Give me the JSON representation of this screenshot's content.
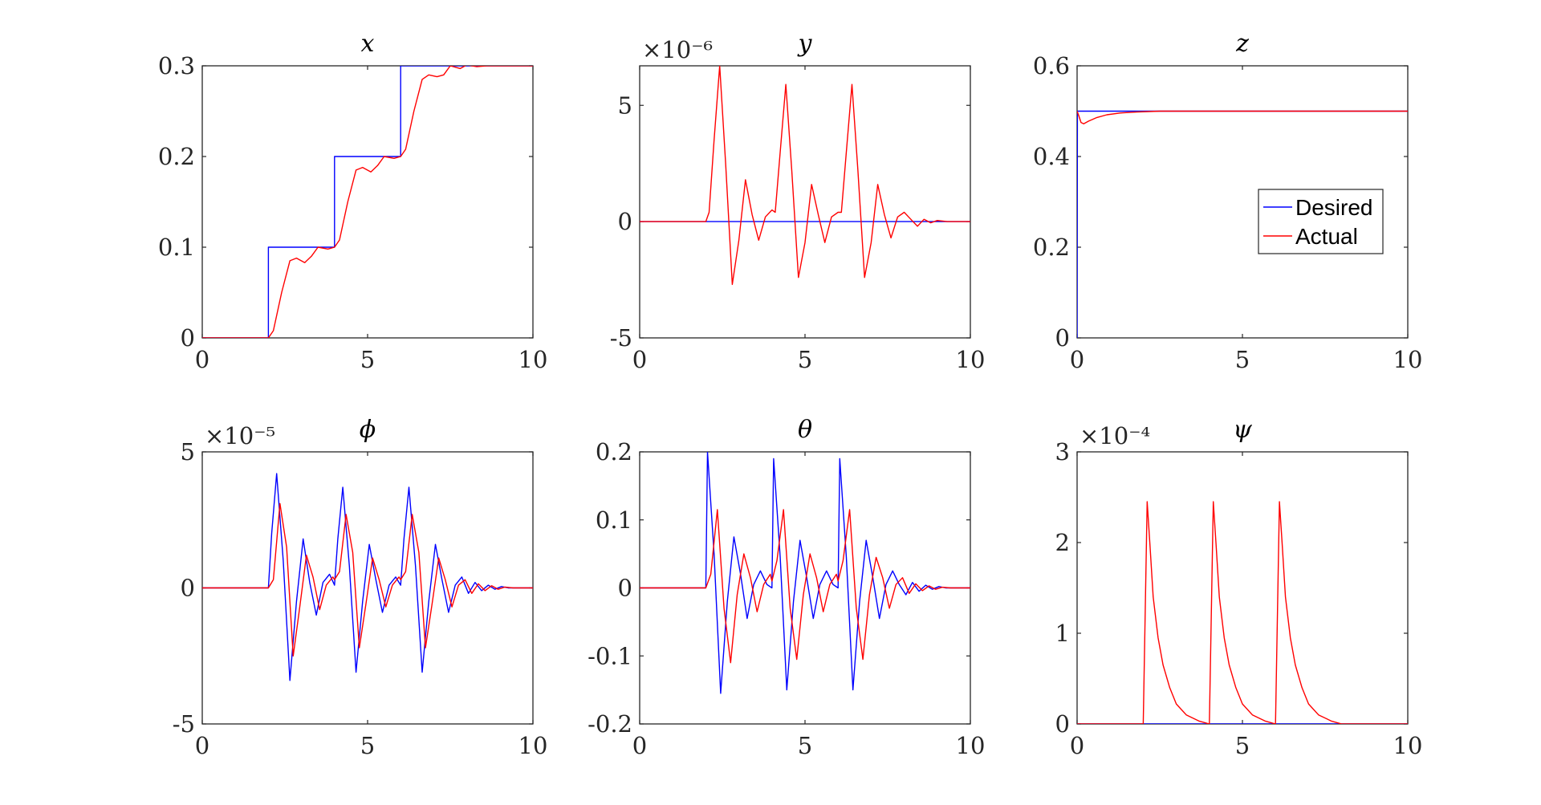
{
  "legend": {
    "placement": "inside subplot z, right",
    "entries": [
      {
        "name": "Desired",
        "color": "#0000ff"
      },
      {
        "name": "Actual",
        "color": "#ff0000"
      }
    ]
  },
  "chart_data": [
    {
      "type": "line",
      "title": "x",
      "exponent": "",
      "xlim": [
        0,
        10
      ],
      "ylim": [
        0,
        0.3
      ],
      "xticks": [
        "0",
        "5",
        "10"
      ],
      "xtick_values": [
        0,
        5,
        10
      ],
      "yticks": [
        "0",
        "0.1",
        "0.2",
        "0.3"
      ],
      "ytick_values": [
        0,
        0.1,
        0.2,
        0.3
      ],
      "series": [
        {
          "name": "Desired",
          "color": "#0000ff",
          "x": [
            0,
            2,
            2,
            4,
            4,
            6,
            6,
            10
          ],
          "y": [
            0,
            0,
            0.1,
            0.1,
            0.2,
            0.2,
            0.3,
            0.3
          ]
        },
        {
          "name": "Actual",
          "color": "#ff0000",
          "x": [
            0,
            2.0,
            2.15,
            2.4,
            2.65,
            2.85,
            3.1,
            3.3,
            3.5,
            3.8,
            4.0,
            4.15,
            4.4,
            4.65,
            4.85,
            5.1,
            5.3,
            5.5,
            5.8,
            6.0,
            6.15,
            6.4,
            6.65,
            6.85,
            7.1,
            7.3,
            7.5,
            7.8,
            8.0,
            8.3,
            8.6,
            9.0,
            9.5,
            10
          ],
          "y": [
            0,
            0,
            0.008,
            0.05,
            0.085,
            0.088,
            0.083,
            0.09,
            0.1,
            0.098,
            0.1,
            0.108,
            0.15,
            0.185,
            0.188,
            0.183,
            0.19,
            0.2,
            0.198,
            0.2,
            0.208,
            0.25,
            0.285,
            0.29,
            0.288,
            0.29,
            0.3,
            0.297,
            0.301,
            0.299,
            0.3,
            0.3,
            0.3,
            0.3
          ]
        }
      ]
    },
    {
      "type": "line",
      "title": "y",
      "exponent": "×10⁻⁶",
      "xlim": [
        0,
        10
      ],
      "ylim": [
        -5,
        6.7
      ],
      "xticks": [
        "0",
        "5",
        "10"
      ],
      "xtick_values": [
        0,
        5,
        10
      ],
      "yticks": [
        "-5",
        "0",
        "5"
      ],
      "ytick_values": [
        -5,
        0,
        5
      ],
      "series": [
        {
          "name": "Desired",
          "color": "#0000ff",
          "x": [
            0,
            10
          ],
          "y": [
            0,
            0
          ]
        },
        {
          "name": "Actual",
          "color": "#ff0000",
          "x": [
            0,
            2.0,
            2.1,
            2.25,
            2.42,
            2.6,
            2.8,
            3.0,
            3.2,
            3.4,
            3.6,
            3.8,
            4.0,
            4.1,
            4.25,
            4.42,
            4.6,
            4.8,
            5.0,
            5.2,
            5.4,
            5.6,
            5.8,
            6.0,
            6.1,
            6.25,
            6.42,
            6.6,
            6.8,
            7.0,
            7.2,
            7.4,
            7.6,
            7.8,
            8.0,
            8.2,
            8.4,
            8.6,
            8.8,
            9.0,
            9.3,
            10
          ],
          "y": [
            0,
            0,
            0.4,
            3.5,
            6.7,
            2.5,
            -2.7,
            -0.8,
            1.8,
            0.3,
            -0.8,
            0.2,
            0.5,
            0.4,
            3.0,
            5.9,
            2.2,
            -2.4,
            -0.9,
            1.6,
            0.3,
            -0.9,
            0.2,
            0.4,
            0.4,
            3.0,
            5.9,
            2.2,
            -2.4,
            -0.9,
            1.6,
            0.3,
            -0.7,
            0.2,
            0.4,
            0.1,
            -0.2,
            0.1,
            -0.05,
            0.05,
            0,
            0
          ]
        }
      ]
    },
    {
      "type": "line",
      "title": "z",
      "exponent": "",
      "xlim": [
        0,
        10
      ],
      "ylim": [
        0,
        0.6
      ],
      "xticks": [
        "0",
        "5",
        "10"
      ],
      "xtick_values": [
        0,
        5,
        10
      ],
      "yticks": [
        "0",
        "0.2",
        "0.4",
        "0.6"
      ],
      "ytick_values": [
        0,
        0.2,
        0.4,
        0.6
      ],
      "series": [
        {
          "name": "Desired",
          "color": "#0000ff",
          "x": [
            0,
            0.01,
            10
          ],
          "y": [
            0,
            0.5,
            0.5
          ]
        },
        {
          "name": "Actual",
          "color": "#ff0000",
          "x": [
            0,
            0.05,
            0.12,
            0.2,
            0.35,
            0.6,
            0.9,
            1.3,
            1.8,
            2.5,
            4,
            10
          ],
          "y": [
            0.5,
            0.49,
            0.475,
            0.472,
            0.478,
            0.486,
            0.492,
            0.496,
            0.498,
            0.5,
            0.5,
            0.5
          ]
        }
      ]
    },
    {
      "type": "line",
      "title": "ϕ",
      "exponent": "×10⁻⁵",
      "xlim": [
        0,
        10
      ],
      "ylim": [
        -5,
        5
      ],
      "xticks": [
        "0",
        "5",
        "10"
      ],
      "xtick_values": [
        0,
        5,
        10
      ],
      "yticks": [
        "-5",
        "0",
        "5"
      ],
      "ytick_values": [
        -5,
        0,
        5
      ],
      "series": [
        {
          "name": "Desired",
          "color": "#0000ff",
          "x": [
            0,
            2.0,
            2.1,
            2.25,
            2.45,
            2.65,
            2.85,
            3.05,
            3.25,
            3.45,
            3.65,
            3.85,
            4.0,
            4.1,
            4.25,
            4.45,
            4.65,
            4.85,
            5.05,
            5.25,
            5.45,
            5.65,
            5.85,
            6.0,
            6.1,
            6.25,
            6.45,
            6.65,
            6.85,
            7.05,
            7.25,
            7.45,
            7.65,
            7.85,
            8.05,
            8.25,
            8.45,
            8.65,
            8.85,
            9.05,
            9.25,
            9.5,
            10
          ],
          "y": [
            0,
            0,
            2.0,
            4.2,
            1.0,
            -3.4,
            -0.5,
            1.8,
            0.2,
            -1.0,
            0.2,
            0.5,
            0.1,
            1.8,
            3.7,
            0.8,
            -3.1,
            -0.5,
            1.6,
            0.3,
            -0.9,
            0.1,
            0.4,
            0.1,
            1.8,
            3.7,
            0.8,
            -3.1,
            -0.5,
            1.6,
            0.3,
            -0.9,
            0.1,
            0.4,
            -0.2,
            0.2,
            -0.1,
            0.1,
            -0.05,
            0.05,
            0,
            0,
            0
          ]
        },
        {
          "name": "Actual",
          "color": "#ff0000",
          "x": [
            0,
            2.0,
            2.15,
            2.35,
            2.55,
            2.75,
            2.95,
            3.15,
            3.35,
            3.55,
            3.75,
            3.95,
            4.0,
            4.15,
            4.35,
            4.55,
            4.75,
            4.95,
            5.15,
            5.35,
            5.55,
            5.75,
            5.95,
            6.0,
            6.15,
            6.35,
            6.55,
            6.75,
            6.95,
            7.15,
            7.35,
            7.55,
            7.75,
            7.95,
            8.15,
            8.35,
            8.55,
            8.75,
            8.95,
            9.15,
            9.4,
            10
          ],
          "y": [
            0,
            0,
            0.3,
            3.1,
            1.5,
            -2.5,
            -0.7,
            1.2,
            0.4,
            -0.8,
            0.1,
            0.4,
            0.3,
            0.6,
            2.7,
            1.3,
            -2.2,
            -0.6,
            1.1,
            0.3,
            -0.7,
            0.1,
            0.4,
            0.3,
            0.6,
            2.7,
            1.3,
            -2.2,
            -0.6,
            1.1,
            0.3,
            -0.7,
            0.1,
            0.3,
            -0.2,
            0.15,
            -0.1,
            0.08,
            -0.05,
            0.03,
            0,
            0
          ]
        }
      ]
    },
    {
      "type": "line",
      "title": "θ",
      "exponent": "",
      "xlim": [
        0,
        10
      ],
      "ylim": [
        -0.2,
        0.2
      ],
      "xticks": [
        "0",
        "5",
        "10"
      ],
      "xtick_values": [
        0,
        5,
        10
      ],
      "yticks": [
        "-0.2",
        "-0.1",
        "0",
        "0.1",
        "0.2"
      ],
      "ytick_values": [
        -0.2,
        -0.1,
        0,
        0.1,
        0.2
      ],
      "series": [
        {
          "name": "Desired",
          "color": "#0000ff",
          "x": [
            0,
            2.0,
            2.05,
            2.25,
            2.45,
            2.65,
            2.85,
            3.05,
            3.25,
            3.45,
            3.65,
            3.85,
            4.0,
            4.05,
            4.25,
            4.45,
            4.65,
            4.85,
            5.05,
            5.25,
            5.45,
            5.65,
            5.85,
            6.0,
            6.05,
            6.25,
            6.45,
            6.65,
            6.85,
            7.05,
            7.25,
            7.45,
            7.65,
            7.85,
            8.05,
            8.25,
            8.45,
            8.65,
            8.85,
            9.05,
            9.25,
            9.5,
            10
          ],
          "y": [
            0,
            0,
            0.2,
            0.05,
            -0.155,
            -0.02,
            0.075,
            0.02,
            -0.045,
            0.005,
            0.025,
            0.005,
            0,
            0.19,
            0.045,
            -0.15,
            -0.02,
            0.07,
            0.015,
            -0.045,
            0.005,
            0.025,
            0.005,
            0,
            0.19,
            0.045,
            -0.15,
            -0.02,
            0.07,
            0.015,
            -0.045,
            0.005,
            0.025,
            0.005,
            -0.01,
            0.008,
            -0.005,
            0.004,
            -0.002,
            0.002,
            0,
            0,
            0
          ]
        },
        {
          "name": "Actual",
          "color": "#ff0000",
          "x": [
            0,
            2.0,
            2.15,
            2.35,
            2.55,
            2.75,
            2.95,
            3.15,
            3.35,
            3.55,
            3.75,
            3.95,
            4.0,
            4.15,
            4.35,
            4.55,
            4.75,
            4.95,
            5.15,
            5.35,
            5.55,
            5.75,
            5.95,
            6.0,
            6.15,
            6.35,
            6.55,
            6.75,
            6.95,
            7.15,
            7.35,
            7.55,
            7.75,
            7.95,
            8.15,
            8.35,
            8.55,
            8.75,
            8.95,
            9.15,
            9.4,
            10
          ],
          "y": [
            0,
            0,
            0.02,
            0.115,
            -0.03,
            -0.11,
            -0.01,
            0.05,
            0.015,
            -0.035,
            0.005,
            0.02,
            0.01,
            0.04,
            0.115,
            -0.03,
            -0.105,
            -0.01,
            0.05,
            0.015,
            -0.035,
            0.005,
            0.02,
            0.01,
            0.04,
            0.115,
            -0.03,
            -0.105,
            -0.01,
            0.045,
            0.015,
            -0.03,
            0.005,
            0.015,
            -0.008,
            0.006,
            -0.004,
            0.003,
            -0.002,
            0.001,
            0,
            0
          ]
        }
      ]
    },
    {
      "type": "line",
      "title": "ψ",
      "exponent": "×10⁻⁴",
      "xlim": [
        0,
        10
      ],
      "ylim": [
        0,
        3
      ],
      "xticks": [
        "0",
        "5",
        "10"
      ],
      "xtick_values": [
        0,
        5,
        10
      ],
      "yticks": [
        "0",
        "1",
        "2",
        "3"
      ],
      "ytick_values": [
        0,
        1,
        2,
        3
      ],
      "series": [
        {
          "name": "Desired",
          "color": "#0000ff",
          "x": [
            0,
            10
          ],
          "y": [
            0,
            0
          ]
        },
        {
          "name": "Actual",
          "color": "#ff0000",
          "x": [
            0,
            2.0,
            2.12,
            2.2,
            2.3,
            2.45,
            2.6,
            2.8,
            3.0,
            3.3,
            3.7,
            4.0,
            4.0,
            4.12,
            4.2,
            4.3,
            4.45,
            4.6,
            4.8,
            5.0,
            5.3,
            5.7,
            6.0,
            6.0,
            6.12,
            6.2,
            6.3,
            6.45,
            6.6,
            6.8,
            7.0,
            7.3,
            7.7,
            8.0,
            10
          ],
          "y": [
            0,
            0,
            2.45,
            2.0,
            1.4,
            0.95,
            0.65,
            0.4,
            0.22,
            0.1,
            0.03,
            0.0,
            0,
            2.45,
            2.0,
            1.4,
            0.95,
            0.65,
            0.4,
            0.22,
            0.1,
            0.03,
            0.0,
            0,
            2.45,
            2.0,
            1.4,
            0.95,
            0.65,
            0.4,
            0.22,
            0.1,
            0.03,
            0.0,
            0
          ]
        }
      ]
    }
  ]
}
